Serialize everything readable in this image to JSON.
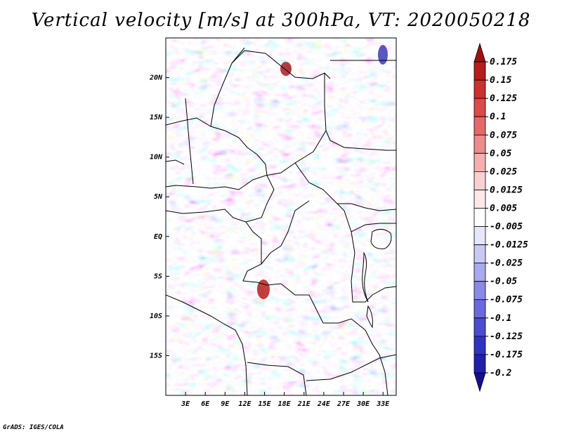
{
  "title": "Vertical velocity [m/s] at 300hPa, VT: 2020050218",
  "credit": "GrADS: IGES/COLA",
  "map": {
    "variable": "Vertical velocity",
    "units": "m/s",
    "level": "300hPa",
    "valid_time": "2020050218",
    "lon_range": [
      0,
      35
    ],
    "lat_range": [
      -20,
      25
    ],
    "lat_ticks": [
      {
        "value": 20,
        "label": "20N"
      },
      {
        "value": 15,
        "label": "15N"
      },
      {
        "value": 10,
        "label": "10N"
      },
      {
        "value": 5,
        "label": "5N"
      },
      {
        "value": 0,
        "label": "EQ"
      },
      {
        "value": -5,
        "label": "5S"
      },
      {
        "value": -10,
        "label": "10S"
      },
      {
        "value": -15,
        "label": "15S"
      }
    ],
    "lon_ticks": [
      {
        "value": 3,
        "label": "3E"
      },
      {
        "value": 6,
        "label": "6E"
      },
      {
        "value": 9,
        "label": "9E"
      },
      {
        "value": 12,
        "label": "12E"
      },
      {
        "value": 15,
        "label": "15E"
      },
      {
        "value": 18,
        "label": "18E"
      },
      {
        "value": 21,
        "label": "21E"
      },
      {
        "value": 24,
        "label": "24E"
      },
      {
        "value": 27,
        "label": "27E"
      },
      {
        "value": 30,
        "label": "30E"
      },
      {
        "value": 33,
        "label": "33E"
      }
    ]
  },
  "colorbar": {
    "levels": [
      "0.175",
      "0.15",
      "0.125",
      "0.1",
      "0.075",
      "0.05",
      "0.025",
      "0.0125",
      "0.005",
      "-0.005",
      "-0.0125",
      "-0.025",
      "-0.05",
      "-0.075",
      "-0.1",
      "-0.125",
      "-0.175",
      "-0.2"
    ],
    "colors": [
      "#a01010",
      "#b81c1c",
      "#cc3030",
      "#dc4a4a",
      "#e46a6a",
      "#ec8c8c",
      "#f4b0b0",
      "#f9d0d0",
      "#fce8e8",
      "#ffffff",
      "#e6e6fb",
      "#c9c9f4",
      "#a9a9ee",
      "#8a8ae6",
      "#6a6add",
      "#4c4cd0",
      "#3232c0",
      "#2020a8",
      "#140f90"
    ]
  }
}
